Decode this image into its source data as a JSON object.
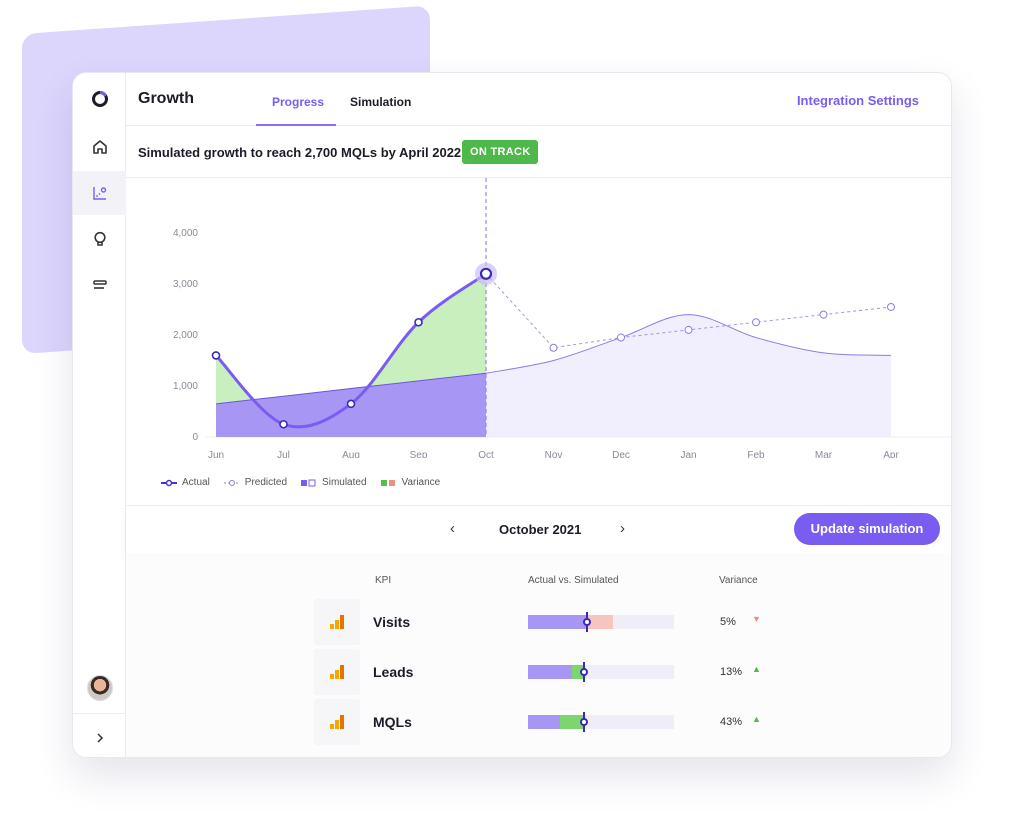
{
  "header": {
    "title": "Growth",
    "tabs": [
      "Progress",
      "Simulation"
    ],
    "integration_link": "Integration Settings"
  },
  "subheader": {
    "title": "Simulated growth to reach 2,700 MQLs by April 2022",
    "badge": "ON TRACK"
  },
  "sidebar": {
    "icons": [
      "logo-icon",
      "home-icon",
      "chart-icon",
      "lightbulb-icon",
      "list-icon"
    ],
    "expand_icon": "chevron-right-icon"
  },
  "chart_data": {
    "type": "line",
    "x": [
      "Jun",
      "Jul",
      "Aug",
      "Sep",
      "Oct",
      "Nov",
      "Dec",
      "Jan",
      "Feb",
      "Mar",
      "Apr"
    ],
    "y_ticks": [
      "0",
      "1,000",
      "2,000",
      "3,000",
      "4,000"
    ],
    "ylim": [
      0,
      4000
    ],
    "series": [
      {
        "name": "Actual",
        "values": [
          1600,
          250,
          650,
          2250,
          3200,
          null,
          null,
          null,
          null,
          null,
          null
        ]
      },
      {
        "name": "Predicted",
        "values": [
          null,
          null,
          null,
          null,
          3200,
          1750,
          1950,
          2100,
          2250,
          2400,
          2550
        ]
      },
      {
        "name": "Simulated",
        "values": [
          650,
          800,
          950,
          1100,
          1250,
          1500,
          1950,
          2400,
          1950,
          1650,
          1600
        ]
      }
    ],
    "legend": [
      "Actual",
      "Predicted",
      "Simulated",
      "Variance"
    ],
    "colors": {
      "actual": "#7b5cf0",
      "simulated": "#b3a6f7",
      "variance_pos": "#b9eba9",
      "variance_neg": "#f4b5ae"
    }
  },
  "navigation": {
    "month": "October 2021",
    "prev": "‹",
    "next": "›",
    "update_button": "Update simulation"
  },
  "kpi_table": {
    "headers": [
      "KPI",
      "Actual vs. Simulated",
      "Variance"
    ],
    "rows": [
      {
        "name": "Visits",
        "variance": "5%",
        "direction": "down",
        "sim": 0.4,
        "actual": 0.5
      },
      {
        "name": "Leads",
        "variance": "13%",
        "direction": "up",
        "sim": 0.38,
        "actual": 0.3
      },
      {
        "name": "MQLs",
        "variance": "43%",
        "direction": "up",
        "sim": 0.38,
        "actual": 0.22
      }
    ]
  }
}
